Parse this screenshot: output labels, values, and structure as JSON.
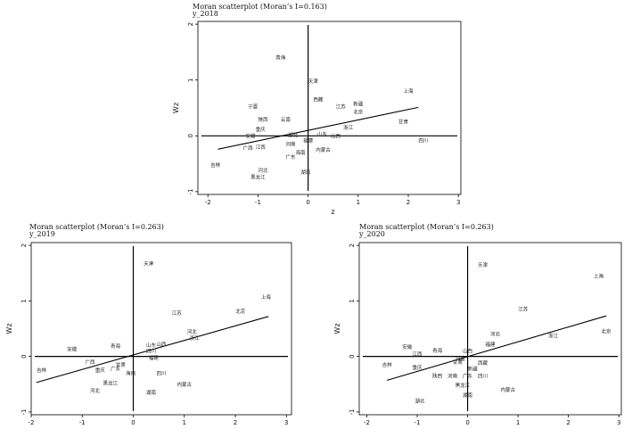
{
  "chart_data": [
    {
      "type": "scatter",
      "title": "Moran scatterplot (Moran’s I=0.163)",
      "subtitle": "y_2018",
      "xlabel": "z",
      "ylabel": "Wz",
      "xlim": [
        -2.2,
        3.05
      ],
      "ylim": [
        -1.05,
        2.05
      ],
      "xticks": [
        "-2",
        "-1",
        "0",
        "1",
        "2",
        "3"
      ],
      "yticks": [
        "-1",
        "0",
        "1",
        "2"
      ],
      "fit_line": {
        "x": [
          -1.8,
          2.2
        ],
        "y": [
          -0.24,
          0.51
        ]
      },
      "points": [
        {
          "label": "青海",
          "x": -0.55,
          "y": 1.4
        },
        {
          "label": "天津",
          "x": 0.1,
          "y": 0.98
        },
        {
          "label": "西藏",
          "x": 0.2,
          "y": 0.65
        },
        {
          "label": "上海",
          "x": 2.0,
          "y": 0.8
        },
        {
          "label": "江苏",
          "x": 0.65,
          "y": 0.52
        },
        {
          "label": "新疆",
          "x": 1.0,
          "y": 0.57
        },
        {
          "label": "北京",
          "x": 1.0,
          "y": 0.43
        },
        {
          "label": "宁夏",
          "x": -1.1,
          "y": 0.52
        },
        {
          "label": "陕西",
          "x": -0.9,
          "y": 0.29
        },
        {
          "label": "云南",
          "x": -0.45,
          "y": 0.29
        },
        {
          "label": "甘肃",
          "x": 1.9,
          "y": 0.25
        },
        {
          "label": "浙江",
          "x": 0.8,
          "y": 0.15
        },
        {
          "label": "安徽",
          "x": -1.15,
          "y": 0.0
        },
        {
          "label": "重庆",
          "x": -0.95,
          "y": 0.12
        },
        {
          "label": "山东",
          "x": 0.28,
          "y": 0.03
        },
        {
          "label": "山西",
          "x": 0.55,
          "y": 0.0
        },
        {
          "label": "四川",
          "x": 2.3,
          "y": -0.08
        },
        {
          "label": "广西",
          "x": -1.2,
          "y": -0.22
        },
        {
          "label": "江西",
          "x": -0.95,
          "y": -0.2
        },
        {
          "label": "湖北",
          "x": -0.3,
          "y": 0.01
        },
        {
          "label": "福建",
          "x": 0.0,
          "y": -0.08
        },
        {
          "label": "河南",
          "x": -0.35,
          "y": -0.15
        },
        {
          "label": "海南",
          "x": -0.15,
          "y": -0.3
        },
        {
          "label": "内蒙古",
          "x": 0.3,
          "y": -0.25
        },
        {
          "label": "广东",
          "x": -0.35,
          "y": -0.38
        },
        {
          "label": "吉林",
          "x": -1.85,
          "y": -0.52
        },
        {
          "label": "河北",
          "x": -0.9,
          "y": -0.62
        },
        {
          "label": "黑龙江",
          "x": -1.0,
          "y": -0.74
        },
        {
          "label": "湖南",
          "x": -0.05,
          "y": -0.65
        }
      ]
    },
    {
      "type": "scatter",
      "title": "Moran scatterplot (Moran’s I=0.263)",
      "subtitle": "y_2019",
      "xlabel": "z",
      "ylabel": "Wz",
      "xlim": [
        -2.0,
        3.1
      ],
      "ylim": [
        -1.05,
        2.05
      ],
      "xticks": [
        "-2",
        "-1",
        "0",
        "1",
        "2",
        "3"
      ],
      "yticks": [
        "-1",
        "0",
        "1",
        "2"
      ],
      "fit_line": {
        "x": [
          -1.9,
          2.65
        ],
        "y": [
          -0.47,
          0.72
        ]
      },
      "points": [
        {
          "label": "天津",
          "x": 0.3,
          "y": 1.67
        },
        {
          "label": "上海",
          "x": 2.6,
          "y": 1.07
        },
        {
          "label": "江苏",
          "x": 0.85,
          "y": 0.78
        },
        {
          "label": "北京",
          "x": 2.1,
          "y": 0.81
        },
        {
          "label": "河北",
          "x": 1.15,
          "y": 0.44
        },
        {
          "label": "浙江",
          "x": 1.2,
          "y": 0.33
        },
        {
          "label": "安徽",
          "x": -1.2,
          "y": 0.13
        },
        {
          "label": "青海",
          "x": -0.35,
          "y": 0.19
        },
        {
          "label": "山东",
          "x": 0.35,
          "y": 0.2
        },
        {
          "label": "山西",
          "x": 0.55,
          "y": 0.22
        },
        {
          "label": "四川",
          "x": 0.35,
          "y": 0.1
        },
        {
          "label": "福建",
          "x": 0.4,
          "y": -0.02
        },
        {
          "label": "广西",
          "x": -0.85,
          "y": -0.1
        },
        {
          "label": "甘肃",
          "x": -0.25,
          "y": -0.15
        },
        {
          "label": "重庆",
          "x": -0.65,
          "y": -0.25
        },
        {
          "label": "广东",
          "x": -0.35,
          "y": -0.22
        },
        {
          "label": "海南",
          "x": -0.05,
          "y": -0.3
        },
        {
          "label": "吉林",
          "x": -1.8,
          "y": -0.25
        },
        {
          "label": "四川",
          "x": 0.55,
          "y": -0.3
        },
        {
          "label": "黑龙江",
          "x": -0.45,
          "y": -0.48
        },
        {
          "label": "内蒙古",
          "x": 1.0,
          "y": -0.5
        },
        {
          "label": "河北",
          "x": -0.75,
          "y": -0.62
        },
        {
          "label": "湖南",
          "x": 0.35,
          "y": -0.65
        }
      ]
    },
    {
      "type": "scatter",
      "title": "Moran scatterplot (Moran’s I=0.263)",
      "subtitle": "y_2020",
      "xlabel": "z",
      "ylabel": "Wz",
      "xlim": [
        -2.15,
        3.05
      ],
      "ylim": [
        -1.05,
        2.05
      ],
      "xticks": [
        "-2",
        "-1",
        "0",
        "1",
        "2",
        "3"
      ],
      "yticks": [
        "-1",
        "0",
        "1",
        "2"
      ],
      "fit_line": {
        "x": [
          -1.6,
          2.75
        ],
        "y": [
          -0.43,
          0.73
        ]
      },
      "points": [
        {
          "label": "天津",
          "x": 0.3,
          "y": 1.65
        },
        {
          "label": "上海",
          "x": 2.6,
          "y": 1.45
        },
        {
          "label": "江苏",
          "x": 1.1,
          "y": 0.85
        },
        {
          "label": "北京",
          "x": 2.75,
          "y": 0.45
        },
        {
          "label": "浙江",
          "x": 1.7,
          "y": 0.37
        },
        {
          "label": "河北",
          "x": 0.55,
          "y": 0.4
        },
        {
          "label": "福建",
          "x": 0.45,
          "y": 0.22
        },
        {
          "label": "安徽",
          "x": -1.2,
          "y": 0.17
        },
        {
          "label": "青海",
          "x": -0.6,
          "y": 0.11
        },
        {
          "label": "山西",
          "x": 0.0,
          "y": 0.1
        },
        {
          "label": "江西",
          "x": -1.0,
          "y": 0.04
        },
        {
          "label": "河南",
          "x": -0.15,
          "y": -0.05
        },
        {
          "label": "甘肃",
          "x": -0.2,
          "y": -0.1
        },
        {
          "label": "重庆",
          "x": -1.0,
          "y": -0.2
        },
        {
          "label": "西藏",
          "x": 0.3,
          "y": -0.12
        },
        {
          "label": "新疆",
          "x": 0.1,
          "y": -0.22
        },
        {
          "label": "吉林",
          "x": -1.6,
          "y": -0.15
        },
        {
          "label": "陕西",
          "x": -0.6,
          "y": -0.35
        },
        {
          "label": "河南",
          "x": -0.3,
          "y": -0.35
        },
        {
          "label": "广东",
          "x": 0.0,
          "y": -0.35
        },
        {
          "label": "四川",
          "x": 0.3,
          "y": -0.35
        },
        {
          "label": "黑龙江",
          "x": -0.1,
          "y": -0.52
        },
        {
          "label": "内蒙古",
          "x": 0.8,
          "y": -0.6
        },
        {
          "label": "湖南",
          "x": 0.0,
          "y": -0.7
        },
        {
          "label": "湖北",
          "x": -0.95,
          "y": -0.8
        }
      ]
    }
  ]
}
